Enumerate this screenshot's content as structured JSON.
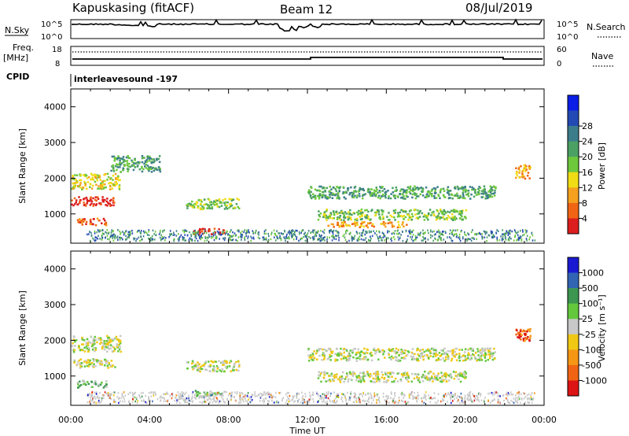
{
  "header": {
    "station": "Kapuskasing (fitACF)",
    "beam": "Beam 12",
    "date": "08/Jul/2019"
  },
  "params": {
    "nsky_label": "N.Sky",
    "nsearch_label": "N.Search",
    "freq_label": "Freq.",
    "freq_unit": "[MHz]",
    "nave_label": "Nave",
    "cpid_label": "CPID",
    "cpid_value": "interleavesound -197",
    "left_ticks_top": "10^5",
    "left_ticks_bottom": "10^0",
    "right_ticks_top": "10^5",
    "right_ticks_bottom": "10^0",
    "freq_ticks": [
      "18",
      "8"
    ],
    "nave_ticks": [
      "60",
      "0"
    ]
  },
  "chart_data": [
    {
      "type": "heatmap",
      "name": "power",
      "ylabel": "Slant Range [km]",
      "yticks": [
        "1000",
        "2000",
        "3000",
        "4000"
      ],
      "ylim": [
        180,
        4500
      ],
      "colorbar": {
        "label": "Power [dB]",
        "ticks": [
          "4",
          "8",
          "12",
          "16",
          "20",
          "24",
          "28"
        ],
        "colors": [
          "#0a1ee6",
          "#234ab4",
          "#3c7d8c",
          "#4ba064",
          "#6ec83c",
          "#f0dc14",
          "#f5a01e",
          "#f06414",
          "#dc1e1e"
        ]
      },
      "bands": [
        {
          "t0": 0.0,
          "t1": 2.2,
          "r0": 1250,
          "r1": 1500,
          "level": 8
        },
        {
          "t0": 0.0,
          "t1": 2.5,
          "r0": 1700,
          "r1": 2150,
          "level": 5
        },
        {
          "t0": 0.3,
          "t1": 1.8,
          "r0": 700,
          "r1": 900,
          "level": 7
        },
        {
          "t0": 2.0,
          "t1": 4.5,
          "r0": 2200,
          "r1": 2650,
          "level": 3
        },
        {
          "t0": 6.2,
          "t1": 7.8,
          "r0": 450,
          "r1": 620,
          "level": 8
        },
        {
          "t0": 5.8,
          "t1": 8.5,
          "r0": 1150,
          "r1": 1450,
          "level": 4
        },
        {
          "t0": 12.0,
          "t1": 21.5,
          "r0": 1450,
          "r1": 1800,
          "level": 3
        },
        {
          "t0": 12.5,
          "t1": 20.0,
          "r0": 850,
          "r1": 1150,
          "level": 4
        },
        {
          "t0": 13.0,
          "t1": 17.0,
          "r0": 650,
          "r1": 800,
          "level": 6
        },
        {
          "t0": 22.5,
          "t1": 23.3,
          "r0": 2000,
          "r1": 2400,
          "level": 6
        }
      ]
    },
    {
      "type": "heatmap",
      "name": "velocity",
      "ylabel": "Slant Range [km]",
      "yticks": [
        "1000",
        "2000",
        "3000",
        "4000"
      ],
      "ylim": [
        180,
        4500
      ],
      "xlabel": "Time UT",
      "xticks": [
        "00:00",
        "04:00",
        "08:00",
        "12:00",
        "16:00",
        "20:00",
        "00:00"
      ],
      "xlim": [
        0,
        24
      ],
      "colorbar": {
        "label": "Velocity [m s⁻¹]",
        "ticks": [
          "1000",
          "500",
          "100",
          "25",
          "-25",
          "-100",
          "-500",
          "-1000"
        ],
        "colors": [
          "#1a1ad2",
          "#3264b4",
          "#3c9650",
          "#64c83c",
          "#c8c8c8",
          "#f0c814",
          "#f59614",
          "#f06414",
          "#dc1414"
        ]
      },
      "bands": [
        {
          "t0": 0.0,
          "t1": 2.2,
          "r0": 1250,
          "r1": 1500,
          "level": 4
        },
        {
          "t0": 0.0,
          "t1": 2.5,
          "r0": 1700,
          "r1": 2150,
          "level": 4
        },
        {
          "t0": 0.3,
          "t1": 1.8,
          "r0": 700,
          "r1": 900,
          "level": 3
        },
        {
          "t0": 6.2,
          "t1": 7.8,
          "r0": 450,
          "r1": 620,
          "level": 3
        },
        {
          "t0": 5.8,
          "t1": 8.5,
          "r0": 1150,
          "r1": 1450,
          "level": 4
        },
        {
          "t0": 12.0,
          "t1": 21.5,
          "r0": 1450,
          "r1": 1800,
          "level": 4
        },
        {
          "t0": 12.5,
          "t1": 20.0,
          "r0": 850,
          "r1": 1150,
          "level": 4
        },
        {
          "t0": 22.5,
          "t1": 23.3,
          "r0": 2000,
          "r1": 2400,
          "level": 7
        }
      ]
    }
  ]
}
